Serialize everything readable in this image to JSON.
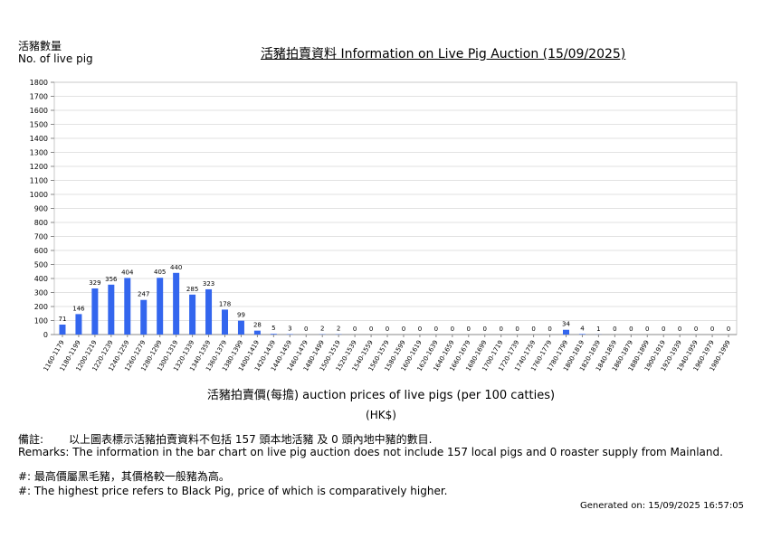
{
  "header": {
    "y_title_zh": "活豬數量",
    "y_title_en": "No. of live pig",
    "title": "活豬拍賣資料 Information on Live Pig Auction (15/09/2025)"
  },
  "chart_data": {
    "type": "bar",
    "title": "活豬拍賣資料 Information on Live Pig Auction (15/09/2025)",
    "ylabel": "活豬數量 No. of live pig",
    "xlabel": "活豬拍賣價(每擔) auction prices of live pigs (per 100 catties)",
    "unit": "(HK$)",
    "ylim": [
      0,
      1800
    ],
    "yticks": [
      0,
      100,
      200,
      300,
      400,
      500,
      600,
      700,
      800,
      900,
      1000,
      1100,
      1200,
      1300,
      1400,
      1500,
      1600,
      1700,
      1800
    ],
    "grid": true,
    "bar_color": "#3366ee",
    "categories": [
      "1160-1179",
      "1180-1199",
      "1200-1219",
      "1220-1239",
      "1240-1259",
      "1260-1279",
      "1280-1299",
      "1300-1319",
      "1320-1339",
      "1340-1359",
      "1360-1379",
      "1380-1399",
      "1400-1419",
      "1420-1439",
      "1440-1459",
      "1460-1479",
      "1480-1499",
      "1500-1519",
      "1520-1539",
      "1540-1559",
      "1560-1579",
      "1580-1599",
      "1600-1619",
      "1620-1639",
      "1640-1659",
      "1660-1679",
      "1680-1699",
      "1700-1719",
      "1720-1739",
      "1740-1759",
      "1760-1779",
      "1780-1799",
      "1800-1819",
      "1820-1839",
      "1840-1859",
      "1860-1879",
      "1880-1899",
      "1900-1919",
      "1920-1939",
      "1940-1959",
      "1960-1979",
      "1980-1999"
    ],
    "values": [
      71,
      146,
      329,
      356,
      404,
      247,
      405,
      440,
      285,
      323,
      178,
      99,
      28,
      5,
      3,
      0,
      2,
      2,
      0,
      0,
      0,
      0,
      0,
      0,
      0,
      0,
      0,
      0,
      0,
      0,
      0,
      34,
      4,
      1,
      0,
      0,
      0,
      0,
      0,
      0,
      0,
      0
    ]
  },
  "footer": {
    "unit": "(HK$)",
    "remark_zh_label": "備註:",
    "remark_zh": "以上圖表標示活豬拍賣資料不包括 157 頭本地活豬 及 0 頭內地中豬的數目.",
    "remark_en": "Remarks: The information in the bar chart on live pig auction does not include 157 local pigs and 0 roaster supply from Mainland.",
    "note_zh": "#: 最高價屬黑毛豬，其價格較一般豬為高。",
    "note_en": "#: The highest price refers to Black Pig, price of which is comparatively higher.",
    "generated": "Generated on: 15/09/2025 16:57:05"
  }
}
